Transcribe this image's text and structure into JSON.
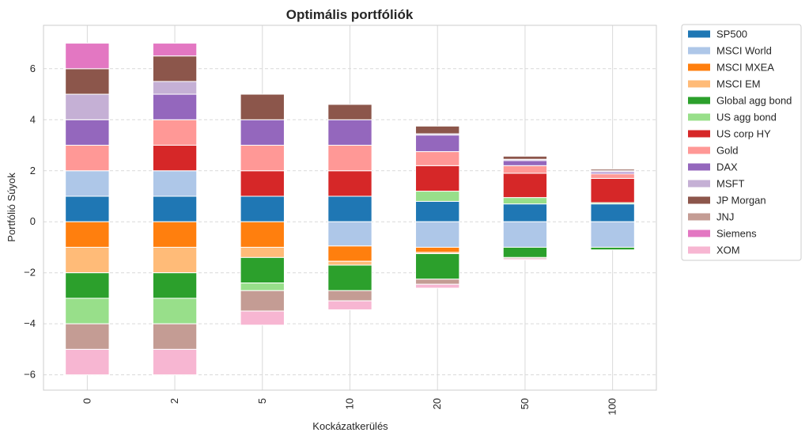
{
  "chart_data": {
    "type": "bar",
    "stacked": true,
    "title": "Optimális portfóliók",
    "xlabel": "Kockázatkerülés",
    "ylabel": "Portfólió Súyok",
    "categories": [
      "0",
      "2",
      "5",
      "10",
      "20",
      "50",
      "100"
    ],
    "ylim": [
      -6.6,
      7.7
    ],
    "yticks": [
      -6,
      -4,
      -2,
      0,
      2,
      4,
      6
    ],
    "ytick_labels": [
      "−6",
      "−4",
      "−2",
      "0",
      "2",
      "4",
      "6"
    ],
    "grid": true,
    "legend_position": "outside-right",
    "series": [
      {
        "name": "SP500",
        "color": "#1f77b4",
        "values": [
          1.0,
          1.0,
          1.0,
          1.0,
          0.8,
          0.7,
          0.7
        ]
      },
      {
        "name": "MSCI World",
        "color": "#aec7e8",
        "values": [
          1.0,
          1.0,
          0.0,
          -0.95,
          -1.0,
          -1.0,
          -1.0
        ]
      },
      {
        "name": "MSCI MXEA",
        "color": "#ff7f0e",
        "values": [
          -1.0,
          -1.0,
          -1.0,
          -0.6,
          -0.2,
          0.0,
          0.0
        ]
      },
      {
        "name": "MSCI EM",
        "color": "#ffbb78",
        "values": [
          -1.0,
          -1.0,
          -0.4,
          -0.15,
          -0.05,
          0.0,
          0.0
        ]
      },
      {
        "name": "Global agg bond",
        "color": "#2ca02c",
        "values": [
          -1.0,
          -1.0,
          -1.0,
          -1.0,
          -1.0,
          -0.4,
          -0.1
        ]
      },
      {
        "name": "US agg bond",
        "color": "#98df8a",
        "values": [
          -1.0,
          -1.0,
          -0.3,
          0.0,
          0.4,
          0.25,
          0.05
        ]
      },
      {
        "name": "US corp HY",
        "color": "#d62728",
        "values": [
          0.0,
          1.0,
          1.0,
          1.0,
          1.0,
          0.95,
          0.95
        ]
      },
      {
        "name": "Gold",
        "color": "#ff9896",
        "values": [
          1.0,
          1.0,
          1.0,
          1.0,
          0.55,
          0.3,
          0.18
        ]
      },
      {
        "name": "DAX",
        "color": "#9467bd",
        "values": [
          1.0,
          1.0,
          1.0,
          1.0,
          0.65,
          0.2,
          0.07
        ]
      },
      {
        "name": "MSFT",
        "color": "#c5b0d5",
        "values": [
          1.0,
          0.5,
          0.0,
          0.0,
          0.05,
          0.05,
          0.05
        ]
      },
      {
        "name": "JP Morgan",
        "color": "#8c564b",
        "values": [
          1.0,
          1.0,
          1.0,
          0.6,
          0.3,
          0.12,
          0.06
        ]
      },
      {
        "name": "JNJ",
        "color": "#c49c94",
        "values": [
          -1.0,
          -1.0,
          -0.8,
          -0.4,
          -0.2,
          -0.05,
          0.0
        ]
      },
      {
        "name": "Siemens",
        "color": "#e377c2",
        "values": [
          1.0,
          0.5,
          0.0,
          0.0,
          0.0,
          0.0,
          0.0
        ]
      },
      {
        "name": "XOM",
        "color": "#f7b6d2",
        "values": [
          -1.0,
          -1.0,
          -0.55,
          -0.35,
          -0.15,
          -0.05,
          0.0
        ]
      }
    ]
  }
}
